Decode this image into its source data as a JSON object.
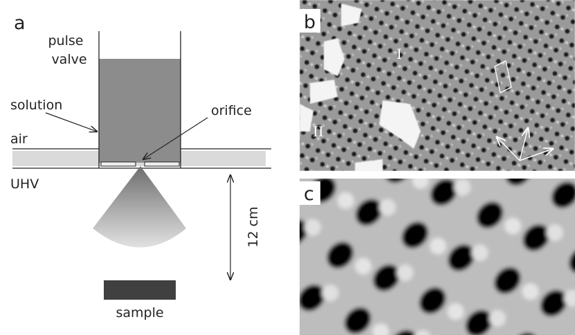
{
  "panel_a": {
    "label": "a",
    "pulse": "pulse",
    "valve": "valve",
    "solution": "solution",
    "orifice": "orifice",
    "air": "air",
    "uhv": "UHV",
    "distance": "12 cm",
    "sample": "sample"
  },
  "panel_b": {
    "label": "b",
    "domain_1": "I",
    "domain_2": "II"
  },
  "panel_c": {
    "label": "c"
  }
}
